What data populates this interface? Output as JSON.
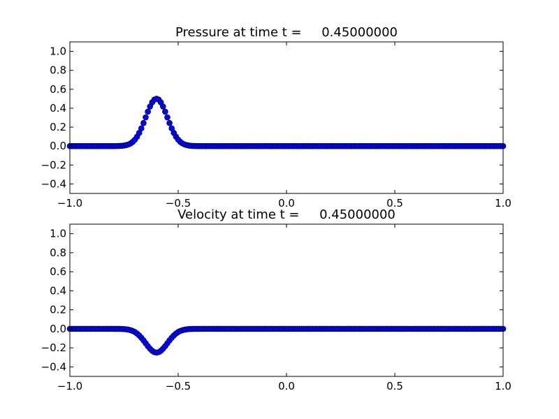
{
  "chart_data": [
    {
      "type": "scatter",
      "title": "Pressure at time t =     0.45000000",
      "xlabel": "",
      "ylabel": "",
      "xlim": [
        -1.0,
        1.0
      ],
      "ylim": [
        -0.5,
        1.1
      ],
      "xticks": [
        "−1.0",
        "−0.5",
        "0.0",
        "0.5",
        "1.0"
      ],
      "yticks": [
        "−0.4",
        "−0.2",
        "0.0",
        "0.2",
        "0.4",
        "0.6",
        "0.8",
        "1.0"
      ],
      "grid": false,
      "marker": "circle",
      "marker_color": "#0000ff",
      "series": [
        {
          "x_range": [
            -1.0,
            1.0
          ],
          "n_points": 201,
          "profile": "gaussian",
          "center": -0.6,
          "amplitude": 0.5,
          "width": 0.05
        }
      ]
    },
    {
      "type": "scatter",
      "title": "Velocity at time t =     0.45000000",
      "xlabel": "",
      "ylabel": "",
      "xlim": [
        -1.0,
        1.0
      ],
      "ylim": [
        -0.5,
        1.1
      ],
      "xticks": [
        "−1.0",
        "−0.5",
        "0.0",
        "0.5",
        "1.0"
      ],
      "yticks": [
        "−0.4",
        "−0.2",
        "0.0",
        "0.2",
        "0.4",
        "0.6",
        "0.8",
        "1.0"
      ],
      "grid": false,
      "marker": "circle",
      "marker_color": "#0000ff",
      "series": [
        {
          "x_range": [
            -1.0,
            1.0
          ],
          "n_points": 201,
          "profile": "gaussian",
          "center": -0.6,
          "amplitude": -0.25,
          "width": 0.05
        }
      ]
    }
  ]
}
